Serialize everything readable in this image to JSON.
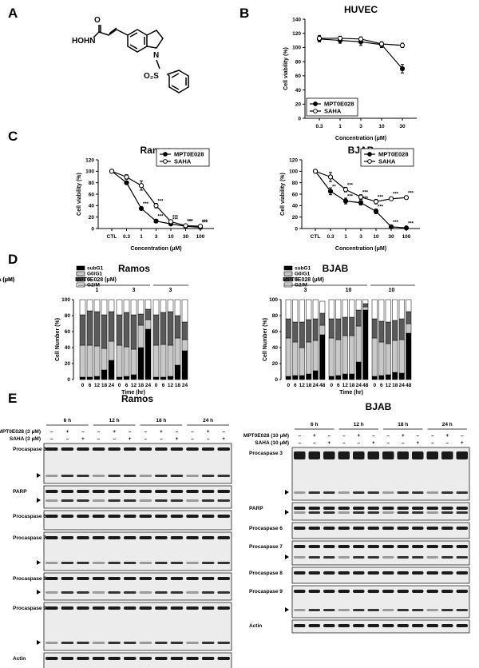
{
  "panels": {
    "a": "A",
    "b": "B",
    "c": "C",
    "d": "D",
    "e": "E"
  },
  "structure": {
    "hydroxamate": "HOHN",
    "carbonyl_o": "O",
    "ring_n": "N",
    "sulfonyl": "O₂S"
  },
  "chart_data": [
    {
      "type": "line",
      "id": "B",
      "title": "HUVEC",
      "xlabel": "Concentration (μM)",
      "ylabel": "Cell viability (%)",
      "categories": [
        "0.3",
        "1",
        "3",
        "10",
        "30"
      ],
      "ylim": [
        0,
        140
      ],
      "yticks": [
        0,
        20,
        40,
        60,
        80,
        100,
        120,
        140
      ],
      "legend_position": "bottom-left",
      "series": [
        {
          "name": "MPT0E028",
          "marker": "filled",
          "values": [
            112,
            110,
            108,
            104,
            70
          ],
          "err": [
            4,
            4,
            5,
            4,
            6
          ]
        },
        {
          "name": "SAHA",
          "marker": "open",
          "values": [
            113,
            113,
            112,
            105,
            103
          ],
          "err": [
            4,
            3,
            3,
            3,
            3
          ]
        }
      ]
    },
    {
      "type": "line",
      "id": "C-Ramos",
      "title": "Ramos",
      "xlabel": "Concentration (μM)",
      "ylabel": "Cell viability (%)",
      "categories": [
        "CTL",
        "0.3",
        "1",
        "3",
        "10",
        "30",
        "100"
      ],
      "ylim": [
        0,
        120
      ],
      "yticks": [
        0,
        20,
        40,
        60,
        80,
        100,
        120
      ],
      "legend_position": "top-right",
      "series": [
        {
          "name": "MPT0E028",
          "marker": "filled",
          "values": [
            100,
            80,
            35,
            13,
            8,
            4,
            2
          ],
          "err": [
            0,
            3,
            3,
            3,
            2,
            2,
            1
          ],
          "sig": [
            "",
            "",
            "***",
            "***",
            "***",
            "***",
            "***"
          ]
        },
        {
          "name": "SAHA",
          "marker": "open",
          "values": [
            100,
            90,
            75,
            40,
            12,
            5,
            4
          ],
          "err": [
            0,
            4,
            8,
            4,
            3,
            2,
            2
          ],
          "sig": [
            "",
            "",
            "",
            "***",
            "***",
            "***",
            "***"
          ]
        }
      ]
    },
    {
      "type": "line",
      "id": "C-BJAB",
      "title": "BJAB",
      "xlabel": "Concentration (μM)",
      "ylabel": "Cell viability (%)",
      "categories": [
        "CTL",
        "0.3",
        "1",
        "3",
        "10",
        "30",
        "100"
      ],
      "ylim": [
        0,
        120
      ],
      "yticks": [
        0,
        20,
        40,
        60,
        80,
        100,
        120
      ],
      "legend_position": "top-right",
      "series": [
        {
          "name": "MPT0E028",
          "marker": "filled",
          "values": [
            100,
            65,
            48,
            45,
            30,
            3,
            1
          ],
          "err": [
            0,
            6,
            5,
            4,
            4,
            1,
            1
          ],
          "sig": [
            "",
            "**",
            "***",
            "***",
            "***",
            "***",
            "***"
          ]
        },
        {
          "name": "SAHA",
          "marker": "open",
          "values": [
            100,
            90,
            68,
            55,
            47,
            52,
            54
          ],
          "err": [
            0,
            8,
            4,
            4,
            4,
            3,
            3
          ],
          "sig": [
            "",
            "",
            "***",
            "***",
            "***",
            "***",
            "***"
          ]
        }
      ]
    },
    {
      "type": "bar",
      "stacked": true,
      "id": "D-Ramos",
      "title": "Ramos",
      "ylabel": "Cell Number (%)",
      "xlabel": "Time (hr)",
      "ylim": [
        0,
        100
      ],
      "yticks": [
        0,
        20,
        40,
        60,
        80,
        100
      ],
      "series_names": [
        "subG1",
        "G0/G1",
        "S",
        "G2/M"
      ],
      "groups": [
        {
          "label": "MPT0E028 (μM)",
          "dose": "1",
          "times": [
            "0",
            "6",
            "12",
            "18",
            "24"
          ]
        },
        {
          "label": "",
          "dose": "3",
          "times": [
            "0",
            "6",
            "12",
            "18",
            "24"
          ]
        },
        {
          "label": "SAHA (μM)",
          "dose": "3",
          "times": [
            "0",
            "6",
            "12",
            "18",
            "24"
          ]
        }
      ],
      "bars": [
        [
          3,
          40,
          38,
          19
        ],
        [
          3,
          40,
          43,
          14
        ],
        [
          4,
          38,
          43,
          15
        ],
        [
          12,
          27,
          42,
          19
        ],
        [
          24,
          24,
          37,
          15
        ],
        [
          3,
          40,
          38,
          19
        ],
        [
          4,
          37,
          43,
          16
        ],
        [
          6,
          32,
          43,
          19
        ],
        [
          40,
          28,
          14,
          18
        ],
        [
          63,
          12,
          13,
          12
        ],
        [
          3,
          40,
          38,
          19
        ],
        [
          3,
          41,
          40,
          16
        ],
        [
          4,
          39,
          42,
          15
        ],
        [
          18,
          34,
          28,
          20
        ],
        [
          36,
          14,
          22,
          28
        ]
      ]
    },
    {
      "type": "bar",
      "stacked": true,
      "id": "D-BJAB",
      "title": "BJAB",
      "ylabel": "Cell Number (%)",
      "xlabel": "Time (hr)",
      "ylim": [
        0,
        100
      ],
      "yticks": [
        0,
        20,
        40,
        60,
        80,
        100
      ],
      "series_names": [
        "subG1",
        "G0/G1",
        "S",
        "G2/M"
      ],
      "groups": [
        {
          "label": "MPT0E028 (μM)",
          "dose": "3",
          "times": [
            "0",
            "6",
            "12",
            "18",
            "24",
            "48"
          ]
        },
        {
          "label": "",
          "dose": "10",
          "times": [
            "0",
            "6",
            "12",
            "18",
            "24",
            "48"
          ]
        },
        {
          "label": "SAHA (μM)",
          "dose": "10",
          "times": [
            "0",
            "6",
            "12",
            "18",
            "24",
            "48"
          ]
        }
      ],
      "bars": [
        [
          4,
          48,
          24,
          24
        ],
        [
          5,
          42,
          25,
          28
        ],
        [
          5,
          35,
          32,
          28
        ],
        [
          7,
          40,
          28,
          25
        ],
        [
          11,
          38,
          27,
          24
        ],
        [
          56,
          12,
          15,
          15
        ],
        [
          4,
          48,
          24,
          24
        ],
        [
          5,
          45,
          26,
          24
        ],
        [
          7,
          48,
          23,
          22
        ],
        [
          7,
          48,
          23,
          22
        ],
        [
          22,
          45,
          20,
          13
        ],
        [
          87,
          4,
          4,
          5
        ],
        [
          4,
          48,
          24,
          24
        ],
        [
          5,
          42,
          26,
          27
        ],
        [
          6,
          39,
          27,
          28
        ],
        [
          9,
          40,
          25,
          26
        ],
        [
          8,
          42,
          26,
          24
        ],
        [
          58,
          12,
          15,
          15
        ]
      ]
    }
  ],
  "blots": {
    "ramos": {
      "title": "Ramos",
      "times": [
        "6 h",
        "12 h",
        "18 h",
        "24 h"
      ],
      "row_labels": [
        "MPT0E028 (3 μM)",
        "SAHA (3 μM)"
      ],
      "signs": [
        [
          "–",
          "+",
          "–"
        ],
        [
          "–",
          "–",
          "+"
        ]
      ],
      "bands": [
        "Procaspase 3",
        "PARP",
        "Procaspase 6",
        "Procaspase 7",
        "Procaspase 8",
        "Procaspase 9",
        "Actin"
      ]
    },
    "bjab": {
      "title": "BJAB",
      "times": [
        "6 h",
        "12 h",
        "18 h",
        "24 h"
      ],
      "row_labels": [
        "MPT0E028 (10 μM)",
        "SAHA (10 μM)"
      ],
      "signs": [
        [
          "–",
          "+",
          "–"
        ],
        [
          "–",
          "–",
          "+"
        ]
      ],
      "bands": [
        "Procaspase 3",
        "PARP",
        "Procaspase 6",
        "Procaspase 7",
        "Procaspase 8",
        "Procaspase 9",
        "Actin"
      ]
    }
  },
  "colors": {
    "subG1": "#000000",
    "G0G1": "#c8c8c8",
    "S": "#5a5a5a",
    "G2M": "#ffffff"
  }
}
